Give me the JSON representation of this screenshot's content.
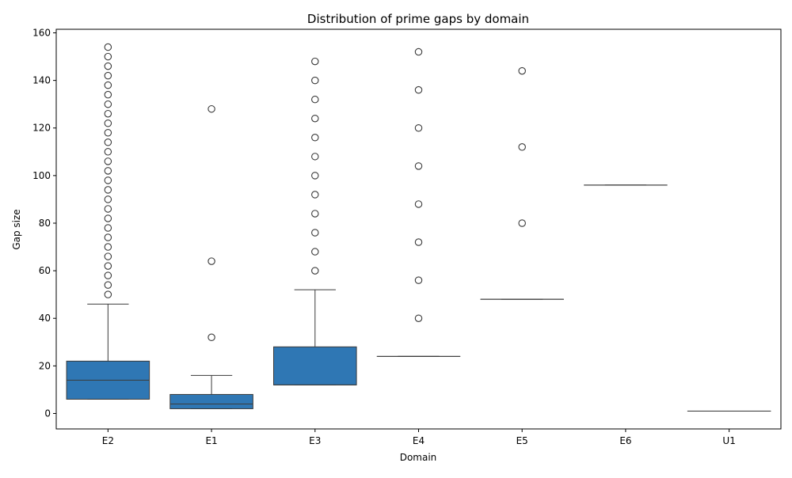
{
  "chart_data": {
    "type": "box",
    "title": "Distribution of prime gaps by domain",
    "xlabel": "Domain",
    "ylabel": "Gap size",
    "ylim": [
      -6.5,
      161.5
    ],
    "yticks": [
      0,
      20,
      40,
      60,
      80,
      100,
      120,
      140,
      160
    ],
    "grid": false,
    "legend": "none",
    "box_color": "#2f77b4",
    "line_color": "#3a3a3a",
    "categories": [
      "E2",
      "E1",
      "E3",
      "E4",
      "E5",
      "E6",
      "U1"
    ],
    "boxes": [
      {
        "category": "E2",
        "whisker_low": 6,
        "q1": 6,
        "median": 14,
        "q3": 22,
        "whisker_high": 46,
        "outliers": [
          50,
          54,
          58,
          62,
          66,
          70,
          74,
          78,
          82,
          86,
          90,
          94,
          98,
          102,
          106,
          110,
          114,
          118,
          122,
          126,
          130,
          134,
          138,
          142,
          146,
          150,
          154
        ]
      },
      {
        "category": "E1",
        "whisker_low": 2,
        "q1": 2,
        "median": 4,
        "q3": 8,
        "whisker_high": 16,
        "outliers": [
          32,
          64,
          128
        ]
      },
      {
        "category": "E3",
        "whisker_low": 12,
        "q1": 12,
        "median": 12,
        "q3": 28,
        "whisker_high": 52,
        "outliers": [
          60,
          68,
          76,
          84,
          92,
          100,
          108,
          116,
          124,
          132,
          140,
          148
        ]
      },
      {
        "category": "E4",
        "whisker_low": 24,
        "q1": 24,
        "median": 24,
        "q3": 24,
        "whisker_high": 24,
        "outliers": [
          40,
          56,
          72,
          88,
          104,
          120,
          136,
          152
        ]
      },
      {
        "category": "E5",
        "whisker_low": 48,
        "q1": 48,
        "median": 48,
        "q3": 48,
        "whisker_high": 48,
        "outliers": [
          80,
          112,
          144
        ]
      },
      {
        "category": "E6",
        "whisker_low": 96,
        "q1": 96,
        "median": 96,
        "q3": 96,
        "whisker_high": 96,
        "outliers": []
      },
      {
        "category": "U1",
        "whisker_low": 1,
        "q1": 1,
        "median": 1,
        "q3": 1,
        "whisker_high": 1,
        "outliers": []
      }
    ]
  }
}
